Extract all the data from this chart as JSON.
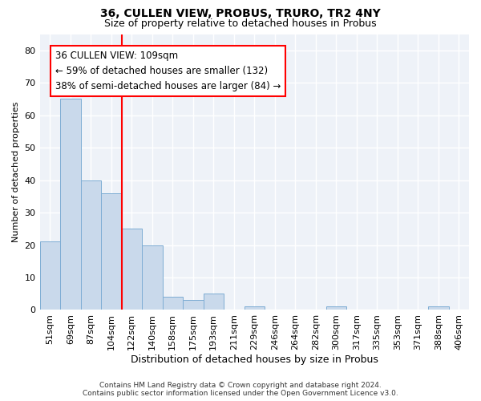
{
  "title": "36, CULLEN VIEW, PROBUS, TRURO, TR2 4NY",
  "subtitle": "Size of property relative to detached houses in Probus",
  "xlabel": "Distribution of detached houses by size in Probus",
  "ylabel": "Number of detached properties",
  "categories": [
    "51sqm",
    "69sqm",
    "87sqm",
    "104sqm",
    "122sqm",
    "140sqm",
    "158sqm",
    "175sqm",
    "193sqm",
    "211sqm",
    "229sqm",
    "246sqm",
    "264sqm",
    "282sqm",
    "300sqm",
    "317sqm",
    "335sqm",
    "353sqm",
    "371sqm",
    "388sqm",
    "406sqm"
  ],
  "values": [
    21,
    65,
    40,
    36,
    25,
    20,
    4,
    3,
    5,
    0,
    1,
    0,
    0,
    0,
    1,
    0,
    0,
    0,
    0,
    1,
    0
  ],
  "bar_color": "#c9d9eb",
  "bar_edgecolor": "#7eadd4",
  "reference_line_color": "red",
  "reference_line_index": 3,
  "annotation_line1": "36 CULLEN VIEW: 109sqm",
  "annotation_line2": "← 59% of detached houses are smaller (132)",
  "annotation_line3": "38% of semi-detached houses are larger (84) →",
  "ylim": [
    0,
    85
  ],
  "yticks": [
    0,
    10,
    20,
    30,
    40,
    50,
    60,
    70,
    80
  ],
  "footer_line1": "Contains HM Land Registry data © Crown copyright and database right 2024.",
  "footer_line2": "Contains public sector information licensed under the Open Government Licence v3.0.",
  "background_color": "#eef2f8",
  "grid_color": "#ffffff",
  "title_fontsize": 10,
  "subtitle_fontsize": 9,
  "tick_fontsize": 8,
  "ylabel_fontsize": 8,
  "xlabel_fontsize": 9,
  "annotation_fontsize": 8.5,
  "footer_fontsize": 6.5
}
